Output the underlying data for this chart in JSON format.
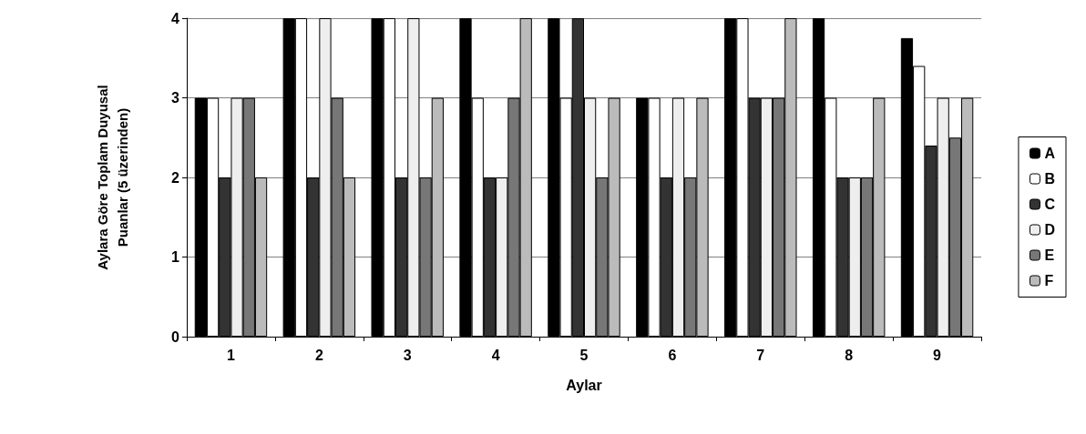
{
  "chart_data": {
    "type": "bar",
    "xlabel": "Aylar",
    "ylabel": "Aylara Göre Toplam Duyusal\nPuanlar (5 üzerinden)",
    "categories": [
      "1",
      "2",
      "3",
      "4",
      "5",
      "6",
      "7",
      "8",
      "9"
    ],
    "series": [
      {
        "name": "A",
        "color": "#000000",
        "values": [
          3,
          4,
          4,
          4,
          4,
          3,
          4,
          4,
          3.75
        ]
      },
      {
        "name": "B",
        "color": "#ffffff",
        "values": [
          3,
          4,
          4,
          3,
          3,
          3,
          4,
          3,
          3.4
        ]
      },
      {
        "name": "C",
        "color": "#333333",
        "values": [
          2,
          2,
          2,
          2,
          4,
          2,
          3,
          2,
          2.4
        ]
      },
      {
        "name": "D",
        "color": "#eeeeee",
        "values": [
          3,
          4,
          4,
          2,
          3,
          3,
          3,
          2,
          3
        ]
      },
      {
        "name": "E",
        "color": "#777777",
        "values": [
          3,
          3,
          2,
          3,
          2,
          2,
          3,
          2,
          2.5
        ]
      },
      {
        "name": "F",
        "color": "#bbbbbb",
        "values": [
          2,
          2,
          3,
          4,
          3,
          3,
          4,
          3,
          3
        ]
      }
    ],
    "ylim": [
      0,
      4
    ],
    "yticks": [
      0,
      1,
      2,
      3,
      4
    ],
    "grid": "y",
    "legend": "right"
  }
}
